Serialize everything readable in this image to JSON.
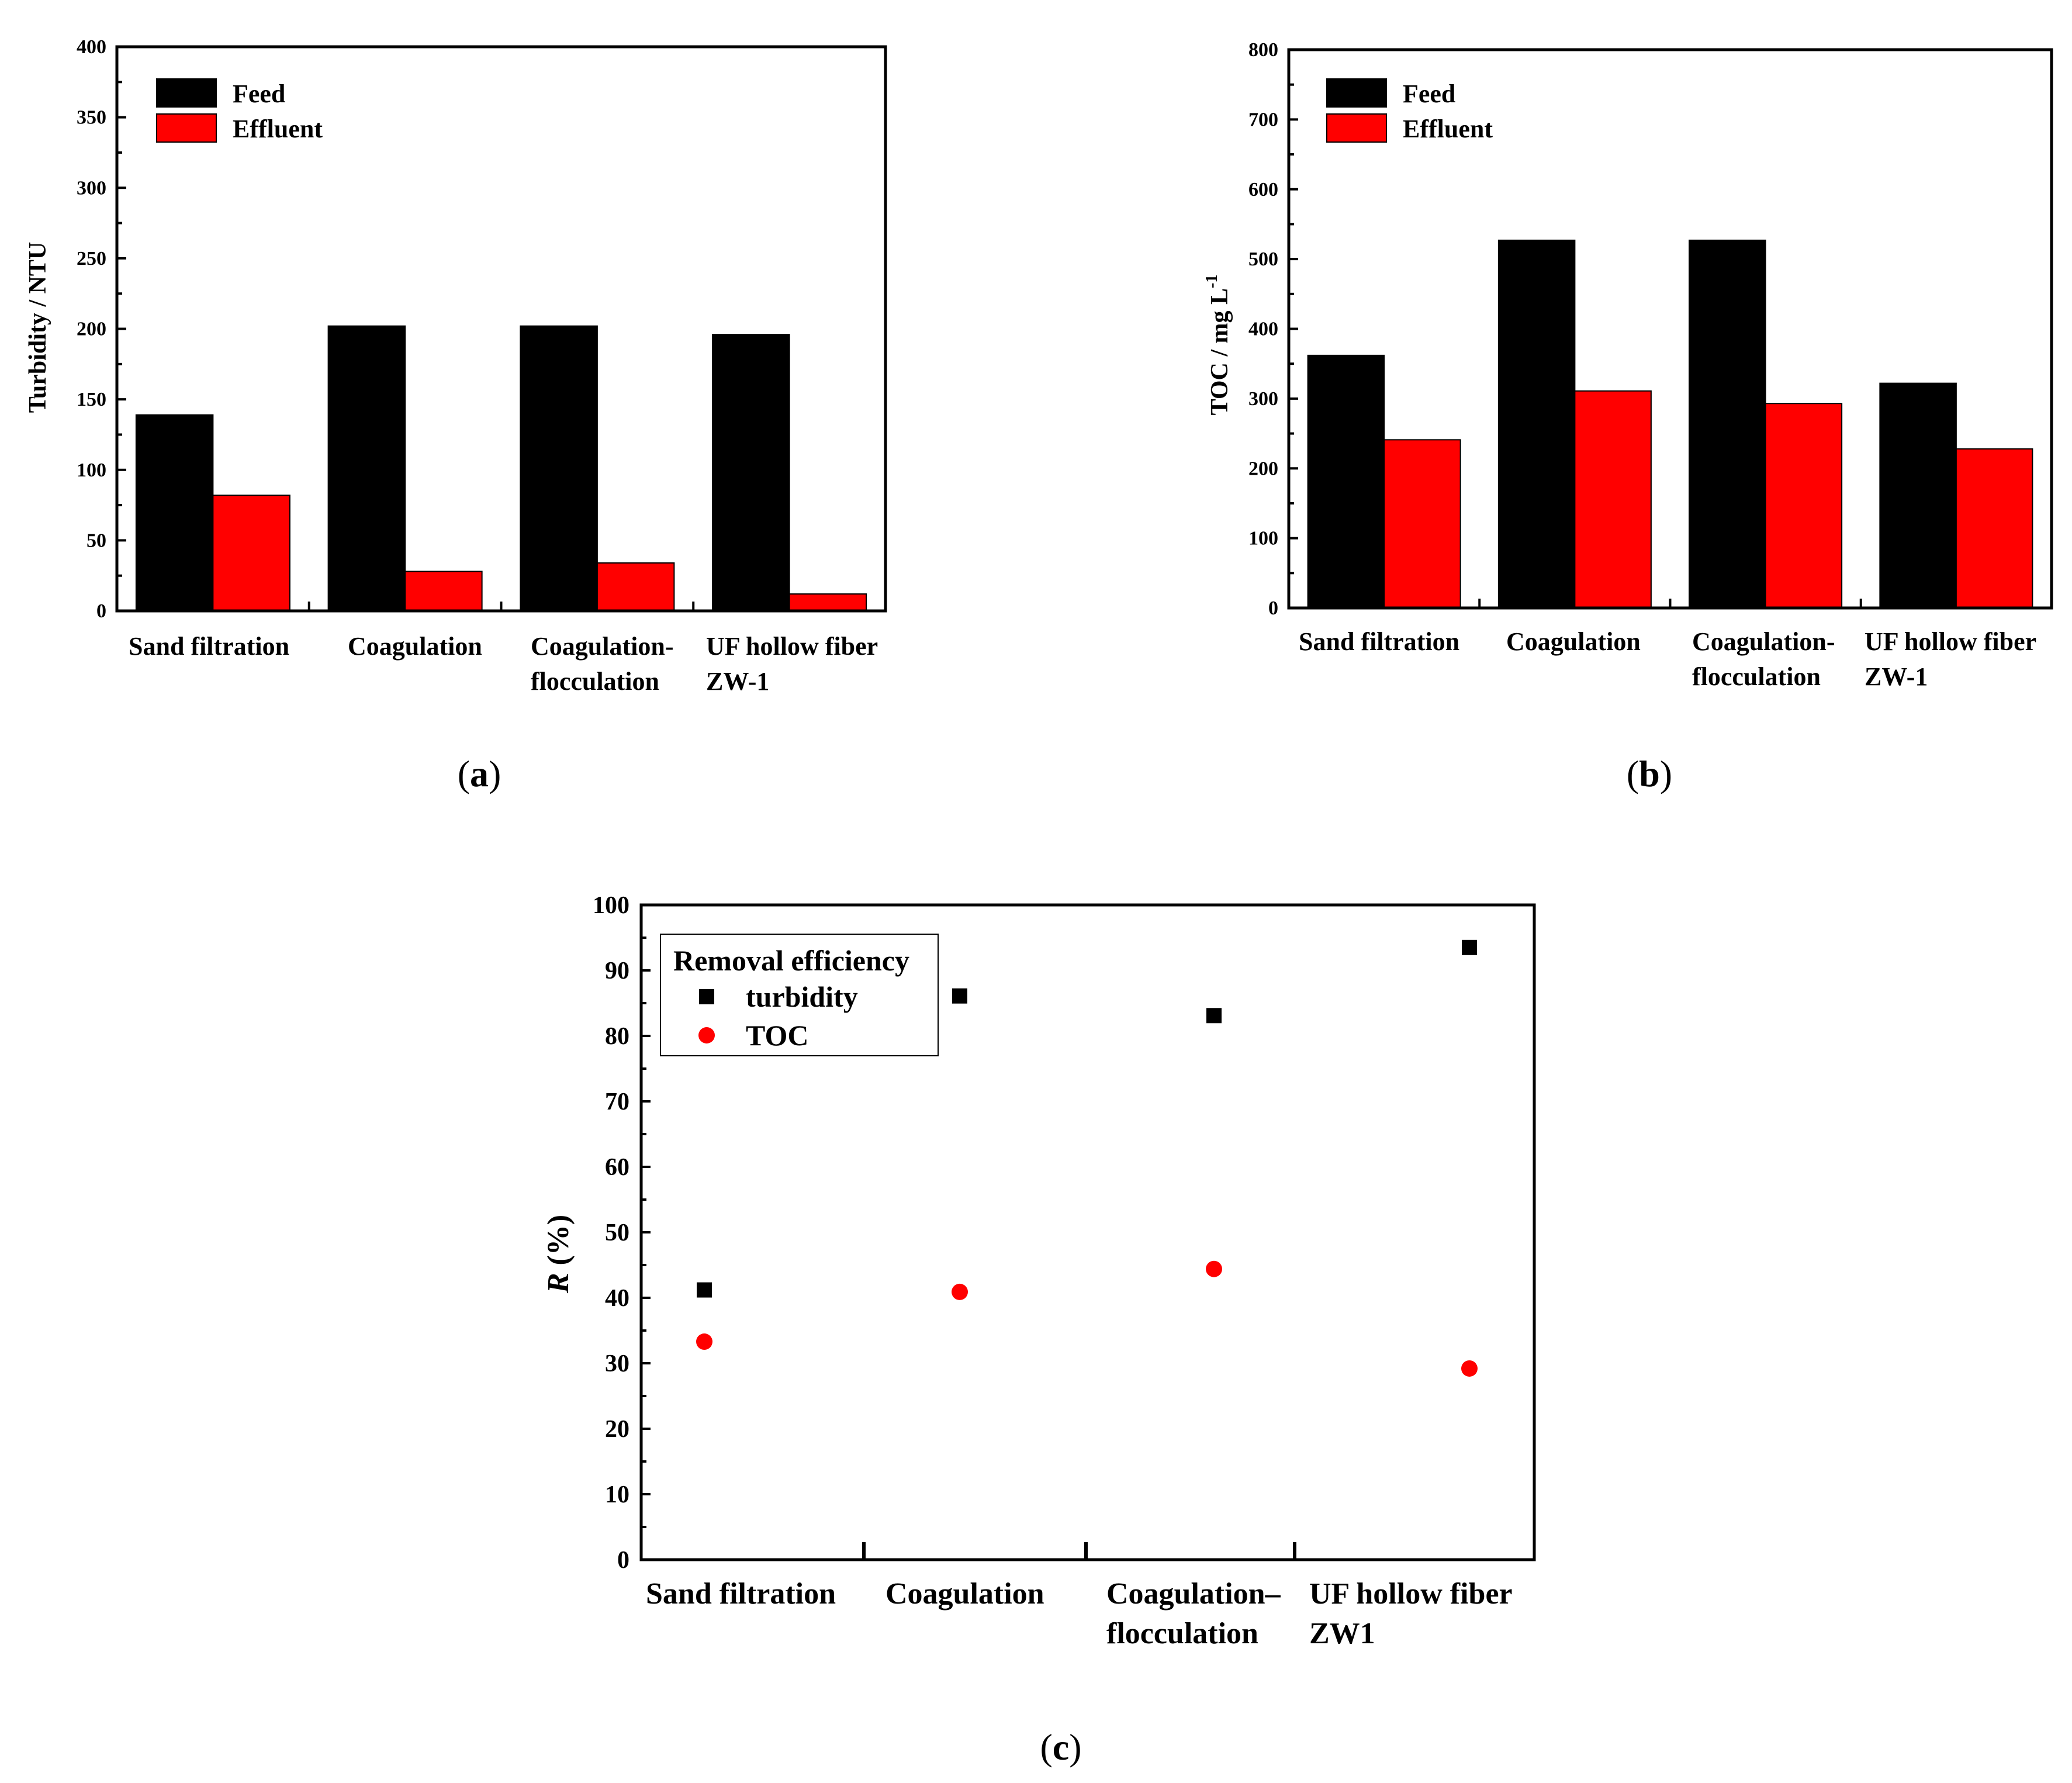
{
  "chart_data": [
    {
      "panel_label": "(a)",
      "panel_letter": "a",
      "type": "bar",
      "categories": [
        [
          "Sand filtration"
        ],
        [
          "Coagulation"
        ],
        [
          "Coagulation-",
          "flocculation"
        ],
        [
          "UF hollow fiber",
          "ZW-1"
        ]
      ],
      "series": [
        {
          "name": "Feed",
          "color": "#000000",
          "values": [
            139,
            202,
            202,
            196
          ]
        },
        {
          "name": "Effluent",
          "color": "#ff0000",
          "values": [
            82,
            28,
            34,
            12
          ]
        }
      ],
      "ylabel": "Turbidity / NTU",
      "ylim": [
        0,
        400
      ],
      "yticks": [
        0,
        50,
        100,
        150,
        200,
        250,
        300,
        350,
        400
      ],
      "legend": "top-left"
    },
    {
      "panel_label": "(b)",
      "panel_letter": "b",
      "type": "bar",
      "categories": [
        [
          "Sand filtration"
        ],
        [
          "Coagulation"
        ],
        [
          "Coagulation-",
          "flocculation"
        ],
        [
          "UF hollow fiber",
          "ZW-1"
        ]
      ],
      "series": [
        {
          "name": "Feed",
          "color": "#000000",
          "values": [
            362,
            527,
            527,
            322
          ]
        },
        {
          "name": "Effluent",
          "color": "#ff0000",
          "values": [
            241,
            311,
            293,
            228
          ]
        }
      ],
      "ylabel_main": "TOC / mg L",
      "ylabel_sup": "-1",
      "ylim": [
        0,
        800
      ],
      "yticks": [
        0,
        100,
        200,
        300,
        400,
        500,
        600,
        700,
        800
      ],
      "legend": "top-left"
    },
    {
      "panel_label": "(c)",
      "panel_letter": "c",
      "type": "scatter",
      "categories": [
        [
          "Sand filtration"
        ],
        [
          "Coagulation"
        ],
        [
          "Coagulation–",
          "flocculation"
        ],
        [
          "UF hollow fiber",
          "ZW1"
        ]
      ],
      "series": [
        {
          "name": "turbidity",
          "marker": "square",
          "color": "#000000",
          "values": [
            41.2,
            86.1,
            83.1,
            93.5
          ]
        },
        {
          "name": "TOC",
          "marker": "circle",
          "color": "#ff0000",
          "values": [
            33.3,
            40.9,
            44.4,
            29.2
          ]
        }
      ],
      "legend_title": "Removal efficiency",
      "ylabel_italic": "R",
      "ylabel_rest": " (%)",
      "ylim": [
        0,
        100
      ],
      "yticks": [
        0,
        10,
        20,
        30,
        40,
        50,
        60,
        70,
        80,
        90,
        100
      ],
      "legend": "top-left"
    }
  ]
}
